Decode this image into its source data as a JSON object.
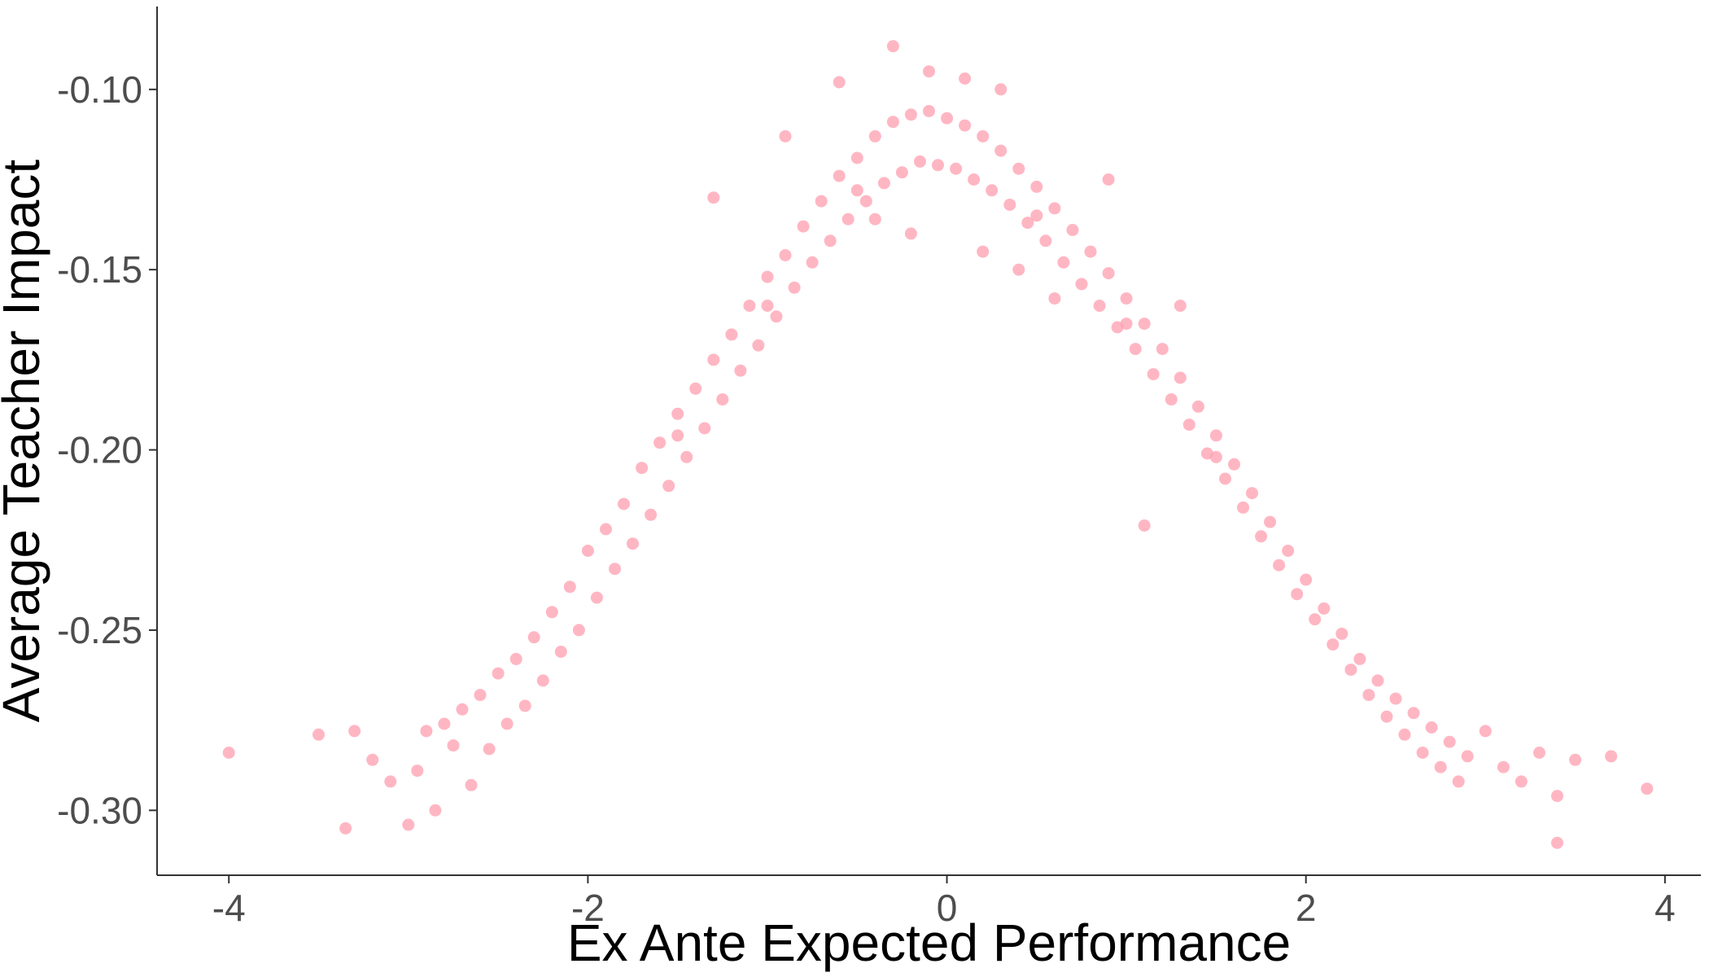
{
  "chart_data": {
    "type": "scatter",
    "title": "",
    "xlabel": "Ex Ante Expected Performance",
    "ylabel": "Average Teacher Impact",
    "xlim": [
      -4.4,
      4.2
    ],
    "ylim": [
      -0.318,
      -0.077
    ],
    "x_ticks": [
      -4,
      -2,
      0,
      2,
      4
    ],
    "x_tick_labels": [
      "-4",
      "-2",
      "0",
      "2",
      "4"
    ],
    "y_ticks": [
      -0.3,
      -0.25,
      -0.2,
      -0.15,
      -0.1
    ],
    "y_tick_labels": [
      "-0.30",
      "-0.25",
      "-0.20",
      "-0.15",
      "-0.10"
    ],
    "grid": false,
    "legend": "none",
    "point_color": "#ffa4b4",
    "point_opacity": 0.8,
    "series": [
      {
        "points": [
          [
            -4.0,
            -0.284
          ],
          [
            -3.5,
            -0.279
          ],
          [
            -3.35,
            -0.305
          ],
          [
            -3.3,
            -0.278
          ],
          [
            -3.2,
            -0.286
          ],
          [
            -3.1,
            -0.292
          ],
          [
            -3.0,
            -0.304
          ],
          [
            -2.95,
            -0.289
          ],
          [
            -2.9,
            -0.278
          ],
          [
            -2.85,
            -0.3
          ],
          [
            -2.8,
            -0.276
          ],
          [
            -2.75,
            -0.282
          ],
          [
            -2.7,
            -0.272
          ],
          [
            -2.65,
            -0.293
          ],
          [
            -2.6,
            -0.268
          ],
          [
            -2.55,
            -0.283
          ],
          [
            -2.5,
            -0.262
          ],
          [
            -2.45,
            -0.276
          ],
          [
            -2.4,
            -0.258
          ],
          [
            -2.35,
            -0.271
          ],
          [
            -2.3,
            -0.252
          ],
          [
            -2.25,
            -0.264
          ],
          [
            -2.2,
            -0.245
          ],
          [
            -2.15,
            -0.256
          ],
          [
            -2.1,
            -0.238
          ],
          [
            -2.05,
            -0.25
          ],
          [
            -2.0,
            -0.228
          ],
          [
            -1.95,
            -0.241
          ],
          [
            -1.9,
            -0.222
          ],
          [
            -1.85,
            -0.233
          ],
          [
            -1.8,
            -0.215
          ],
          [
            -1.75,
            -0.226
          ],
          [
            -1.7,
            -0.205
          ],
          [
            -1.65,
            -0.218
          ],
          [
            -1.6,
            -0.198
          ],
          [
            -1.55,
            -0.21
          ],
          [
            -1.5,
            -0.19
          ],
          [
            -1.45,
            -0.202
          ],
          [
            -1.4,
            -0.183
          ],
          [
            -1.35,
            -0.194
          ],
          [
            -1.3,
            -0.175
          ],
          [
            -1.25,
            -0.186
          ],
          [
            -1.2,
            -0.168
          ],
          [
            -1.15,
            -0.178
          ],
          [
            -1.1,
            -0.16
          ],
          [
            -1.05,
            -0.171
          ],
          [
            -1.0,
            -0.152
          ],
          [
            -0.95,
            -0.163
          ],
          [
            -0.9,
            -0.146
          ],
          [
            -0.85,
            -0.155
          ],
          [
            -0.8,
            -0.138
          ],
          [
            -0.75,
            -0.148
          ],
          [
            -0.7,
            -0.131
          ],
          [
            -0.65,
            -0.142
          ],
          [
            -0.6,
            -0.124
          ],
          [
            -0.55,
            -0.136
          ],
          [
            -0.5,
            -0.119
          ],
          [
            -0.45,
            -0.131
          ],
          [
            -0.4,
            -0.113
          ],
          [
            -0.35,
            -0.126
          ],
          [
            -0.3,
            -0.109
          ],
          [
            -0.25,
            -0.123
          ],
          [
            -0.2,
            -0.107
          ],
          [
            -0.15,
            -0.12
          ],
          [
            -0.1,
            -0.106
          ],
          [
            -0.05,
            -0.121
          ],
          [
            0.0,
            -0.108
          ],
          [
            0.05,
            -0.122
          ],
          [
            0.1,
            -0.11
          ],
          [
            0.15,
            -0.125
          ],
          [
            0.2,
            -0.113
          ],
          [
            0.25,
            -0.128
          ],
          [
            0.3,
            -0.117
          ],
          [
            0.35,
            -0.132
          ],
          [
            0.4,
            -0.122
          ],
          [
            0.45,
            -0.137
          ],
          [
            0.5,
            -0.127
          ],
          [
            0.55,
            -0.142
          ],
          [
            0.6,
            -0.133
          ],
          [
            0.65,
            -0.148
          ],
          [
            0.7,
            -0.139
          ],
          [
            0.75,
            -0.154
          ],
          [
            0.8,
            -0.145
          ],
          [
            0.85,
            -0.16
          ],
          [
            0.9,
            -0.151
          ],
          [
            0.95,
            -0.166
          ],
          [
            1.0,
            -0.158
          ],
          [
            1.05,
            -0.172
          ],
          [
            1.1,
            -0.165
          ],
          [
            1.15,
            -0.179
          ],
          [
            1.2,
            -0.172
          ],
          [
            1.25,
            -0.186
          ],
          [
            1.3,
            -0.18
          ],
          [
            1.35,
            -0.193
          ],
          [
            1.4,
            -0.188
          ],
          [
            1.45,
            -0.201
          ],
          [
            1.5,
            -0.196
          ],
          [
            1.55,
            -0.208
          ],
          [
            1.6,
            -0.204
          ],
          [
            1.65,
            -0.216
          ],
          [
            1.7,
            -0.212
          ],
          [
            1.75,
            -0.224
          ],
          [
            1.8,
            -0.22
          ],
          [
            1.85,
            -0.232
          ],
          [
            1.9,
            -0.228
          ],
          [
            1.95,
            -0.24
          ],
          [
            2.0,
            -0.236
          ],
          [
            2.05,
            -0.247
          ],
          [
            2.1,
            -0.244
          ],
          [
            2.15,
            -0.254
          ],
          [
            2.2,
            -0.251
          ],
          [
            2.25,
            -0.261
          ],
          [
            2.3,
            -0.258
          ],
          [
            2.35,
            -0.268
          ],
          [
            2.4,
            -0.264
          ],
          [
            2.45,
            -0.274
          ],
          [
            2.5,
            -0.269
          ],
          [
            2.55,
            -0.279
          ],
          [
            2.6,
            -0.273
          ],
          [
            2.65,
            -0.284
          ],
          [
            2.7,
            -0.277
          ],
          [
            2.75,
            -0.288
          ],
          [
            2.8,
            -0.281
          ],
          [
            2.85,
            -0.292
          ],
          [
            2.9,
            -0.285
          ],
          [
            3.0,
            -0.278
          ],
          [
            3.1,
            -0.288
          ],
          [
            3.2,
            -0.292
          ],
          [
            3.3,
            -0.284
          ],
          [
            3.4,
            -0.309
          ],
          [
            3.4,
            -0.296
          ],
          [
            3.5,
            -0.286
          ],
          [
            3.7,
            -0.285
          ],
          [
            3.9,
            -0.294
          ],
          [
            -1.0,
            -0.16
          ],
          [
            -0.5,
            -0.128
          ],
          [
            0.5,
            -0.135
          ],
          [
            1.0,
            -0.165
          ],
          [
            -1.5,
            -0.196
          ],
          [
            1.5,
            -0.202
          ],
          [
            -0.3,
            -0.088
          ],
          [
            -0.1,
            -0.095
          ],
          [
            0.1,
            -0.097
          ],
          [
            -0.6,
            -0.098
          ],
          [
            0.3,
            -0.1
          ],
          [
            -0.2,
            -0.14
          ],
          [
            0.2,
            -0.145
          ],
          [
            -0.4,
            -0.136
          ],
          [
            0.4,
            -0.15
          ],
          [
            0.6,
            -0.158
          ],
          [
            1.1,
            -0.221
          ],
          [
            -0.9,
            -0.113
          ],
          [
            -1.3,
            -0.13
          ],
          [
            0.9,
            -0.125
          ],
          [
            1.3,
            -0.16
          ]
        ]
      }
    ]
  }
}
